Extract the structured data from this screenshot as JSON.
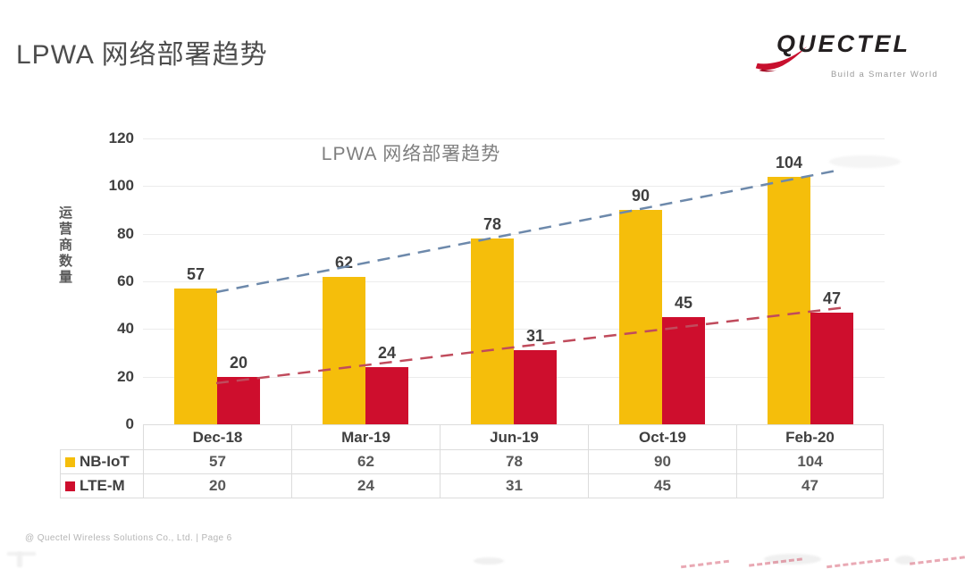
{
  "page": {
    "title": "LPWA 网络部署趋势",
    "footer": "@ Quectel Wireless Solutions Co., Ltd.  |  Page 6"
  },
  "logo": {
    "brand": "QUECTEL",
    "tagline": "Build a Smarter World",
    "brand_color": "#231f20",
    "swoosh_color": "#c8102e",
    "tagline_color": "#9a9a9a"
  },
  "chart_data": {
    "type": "bar",
    "title": "LPWA 网络部署趋势",
    "ylabel": "运营商数量",
    "xlabel": "",
    "categories": [
      "Dec-18",
      "Mar-19",
      "Jun-19",
      "Oct-19",
      "Feb-20"
    ],
    "series": [
      {
        "name": "NB-IoT",
        "values": [
          57,
          62,
          78,
          90,
          104
        ],
        "bar_color": "#f5be0b",
        "trend_color": "#6d89ab",
        "swatch": "legend-swatch-nb-iot"
      },
      {
        "name": "LTE-M",
        "values": [
          20,
          24,
          31,
          45,
          47
        ],
        "bar_color": "#ce0e2d",
        "trend_color": "#c04b5c",
        "swatch": "legend-swatch-lte-m"
      }
    ],
    "ylim": [
      0,
      120
    ],
    "ytick_step": 20,
    "grid": true,
    "grid_color": "#ececec",
    "trendlines": "linear-dashed",
    "legend_position": "table-left"
  }
}
